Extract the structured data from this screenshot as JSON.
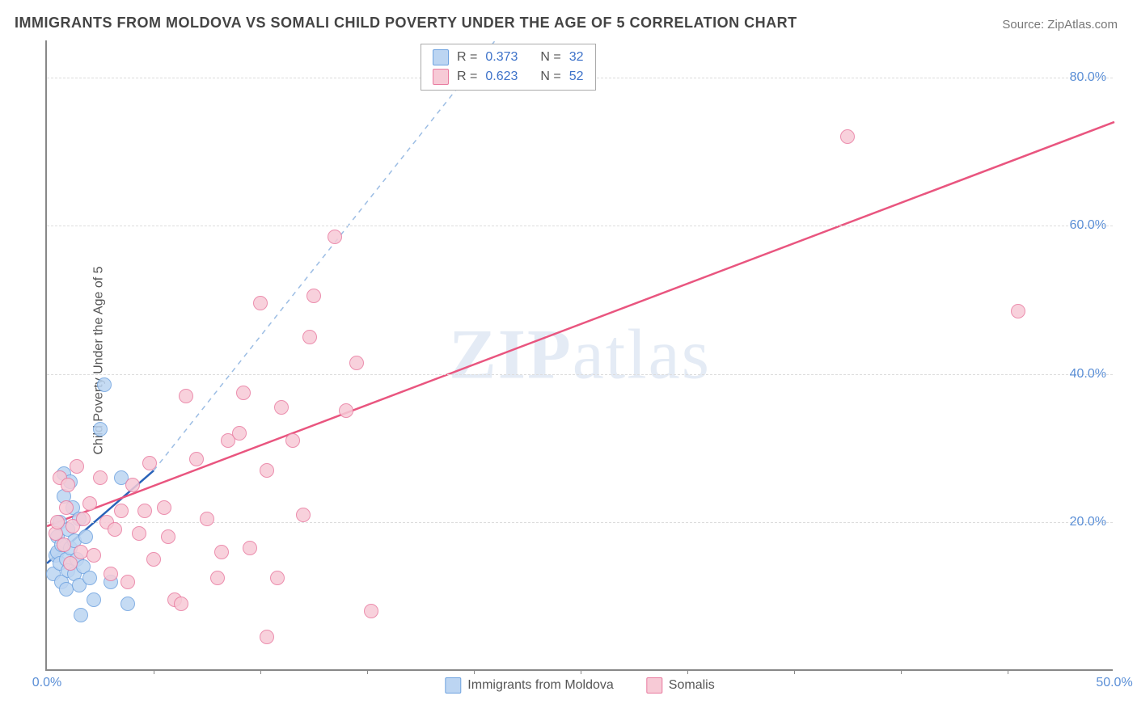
{
  "title": "IMMIGRANTS FROM MOLDOVA VS SOMALI CHILD POVERTY UNDER THE AGE OF 5 CORRELATION CHART",
  "source_label": "Source: ",
  "source_name": "ZipAtlas.com",
  "ylabel": "Child Poverty Under the Age of 5",
  "watermark_a": "ZIP",
  "watermark_b": "atlas",
  "chart": {
    "type": "scatter",
    "xlim": [
      0,
      50
    ],
    "ylim": [
      0,
      85
    ],
    "xtick_major": [
      0,
      50
    ],
    "xtick_minor": [
      5,
      10,
      15,
      20,
      25,
      30,
      35,
      40,
      45
    ],
    "xtick_labels": [
      "0.0%",
      "50.0%"
    ],
    "ytick_major": [
      20,
      40,
      60,
      80
    ],
    "ytick_labels": [
      "20.0%",
      "40.0%",
      "60.0%",
      "80.0%"
    ],
    "background_color": "#ffffff",
    "grid_color": "#dddddd",
    "axis_color": "#888888",
    "tick_label_color": "#5b8fd6",
    "marker_size": 18,
    "series": [
      {
        "name": "Immigrants from Moldova",
        "color_fill": "#bcd5f2",
        "color_stroke": "#6fa3e0",
        "r": 0.373,
        "n": 32,
        "trend": {
          "x1": 0,
          "y1": 14.5,
          "x2": 5,
          "y2": 27,
          "color": "#2a63b9",
          "width": 2.5,
          "dash": false
        },
        "trend_ext": {
          "x1": 5,
          "y1": 27,
          "x2": 21,
          "y2": 85,
          "color": "#9cbde4",
          "width": 1.5,
          "dash": true
        },
        "points": [
          [
            0.3,
            15.0
          ],
          [
            0.4,
            17.5
          ],
          [
            0.5,
            20.0
          ],
          [
            0.5,
            18.0
          ],
          [
            0.6,
            16.5
          ],
          [
            0.6,
            22.0
          ],
          [
            0.7,
            14.0
          ],
          [
            0.7,
            19.0
          ],
          [
            0.8,
            28.5
          ],
          [
            0.8,
            25.5
          ],
          [
            0.9,
            13.0
          ],
          [
            0.9,
            17.0
          ],
          [
            1.0,
            15.5
          ],
          [
            1.0,
            21.0
          ],
          [
            1.1,
            27.5
          ],
          [
            1.1,
            18.5
          ],
          [
            1.2,
            24.0
          ],
          [
            1.3,
            15.0
          ],
          [
            1.3,
            19.5
          ],
          [
            1.4,
            17.0
          ],
          [
            1.5,
            22.5
          ],
          [
            1.5,
            13.5
          ],
          [
            1.7,
            16.0
          ],
          [
            1.8,
            20.0
          ],
          [
            2.0,
            14.5
          ],
          [
            2.2,
            11.5
          ],
          [
            2.5,
            34.5
          ],
          [
            2.7,
            40.5
          ],
          [
            3.0,
            14.0
          ],
          [
            3.5,
            28.0
          ],
          [
            1.6,
            9.5
          ],
          [
            3.8,
            11.0
          ]
        ]
      },
      {
        "name": "Somalis",
        "color_fill": "#f7cad6",
        "color_stroke": "#e97ba0",
        "r": 0.623,
        "n": 52,
        "trend": {
          "x1": 0,
          "y1": 19.5,
          "x2": 50,
          "y2": 74,
          "color": "#e9557f",
          "width": 2.5,
          "dash": false
        },
        "points": [
          [
            0.4,
            20.5
          ],
          [
            0.5,
            22.0
          ],
          [
            0.6,
            28.0
          ],
          [
            0.8,
            19.0
          ],
          [
            0.9,
            24.0
          ],
          [
            1.0,
            27.0
          ],
          [
            1.1,
            16.5
          ],
          [
            1.2,
            21.5
          ],
          [
            1.4,
            29.5
          ],
          [
            1.6,
            18.0
          ],
          [
            1.7,
            22.5
          ],
          [
            2.0,
            24.5
          ],
          [
            2.2,
            17.5
          ],
          [
            2.5,
            28.0
          ],
          [
            2.8,
            22.0
          ],
          [
            3.0,
            15.0
          ],
          [
            3.2,
            21.0
          ],
          [
            3.5,
            23.5
          ],
          [
            3.8,
            14.0
          ],
          [
            4.0,
            27.0
          ],
          [
            4.3,
            20.5
          ],
          [
            4.6,
            23.5
          ],
          [
            4.8,
            30.0
          ],
          [
            5.0,
            17.0
          ],
          [
            5.5,
            24.0
          ],
          [
            5.7,
            20.0
          ],
          [
            6.0,
            11.5
          ],
          [
            6.3,
            11.0
          ],
          [
            6.5,
            39.0
          ],
          [
            7.0,
            30.5
          ],
          [
            7.5,
            22.5
          ],
          [
            8.0,
            14.5
          ],
          [
            8.2,
            18.0
          ],
          [
            8.5,
            33.0
          ],
          [
            9.0,
            34.0
          ],
          [
            9.2,
            39.5
          ],
          [
            9.5,
            18.5
          ],
          [
            10.0,
            51.5
          ],
          [
            10.3,
            29.0
          ],
          [
            10.8,
            14.5
          ],
          [
            11.0,
            37.5
          ],
          [
            11.5,
            33.0
          ],
          [
            12.0,
            23.0
          ],
          [
            12.3,
            47.0
          ],
          [
            12.5,
            52.5
          ],
          [
            13.5,
            60.5
          ],
          [
            14.5,
            43.5
          ],
          [
            15.2,
            10.0
          ],
          [
            10.3,
            6.5
          ],
          [
            37.5,
            74.0
          ],
          [
            45.5,
            50.5
          ],
          [
            14.0,
            37.0
          ]
        ]
      }
    ]
  },
  "legend_bottom": [
    {
      "label": "Immigrants from Moldova",
      "fill": "#bcd5f2",
      "stroke": "#6fa3e0"
    },
    {
      "label": "Somalis",
      "fill": "#f7cad6",
      "stroke": "#e97ba0"
    }
  ],
  "legend_top": {
    "r_label": "R =",
    "n_label": "N =",
    "rows": [
      {
        "fill": "#bcd5f2",
        "stroke": "#6fa3e0",
        "r": "0.373",
        "n": "32"
      },
      {
        "fill": "#f7cad6",
        "stroke": "#e97ba0",
        "r": "0.623",
        "n": "52"
      }
    ]
  }
}
